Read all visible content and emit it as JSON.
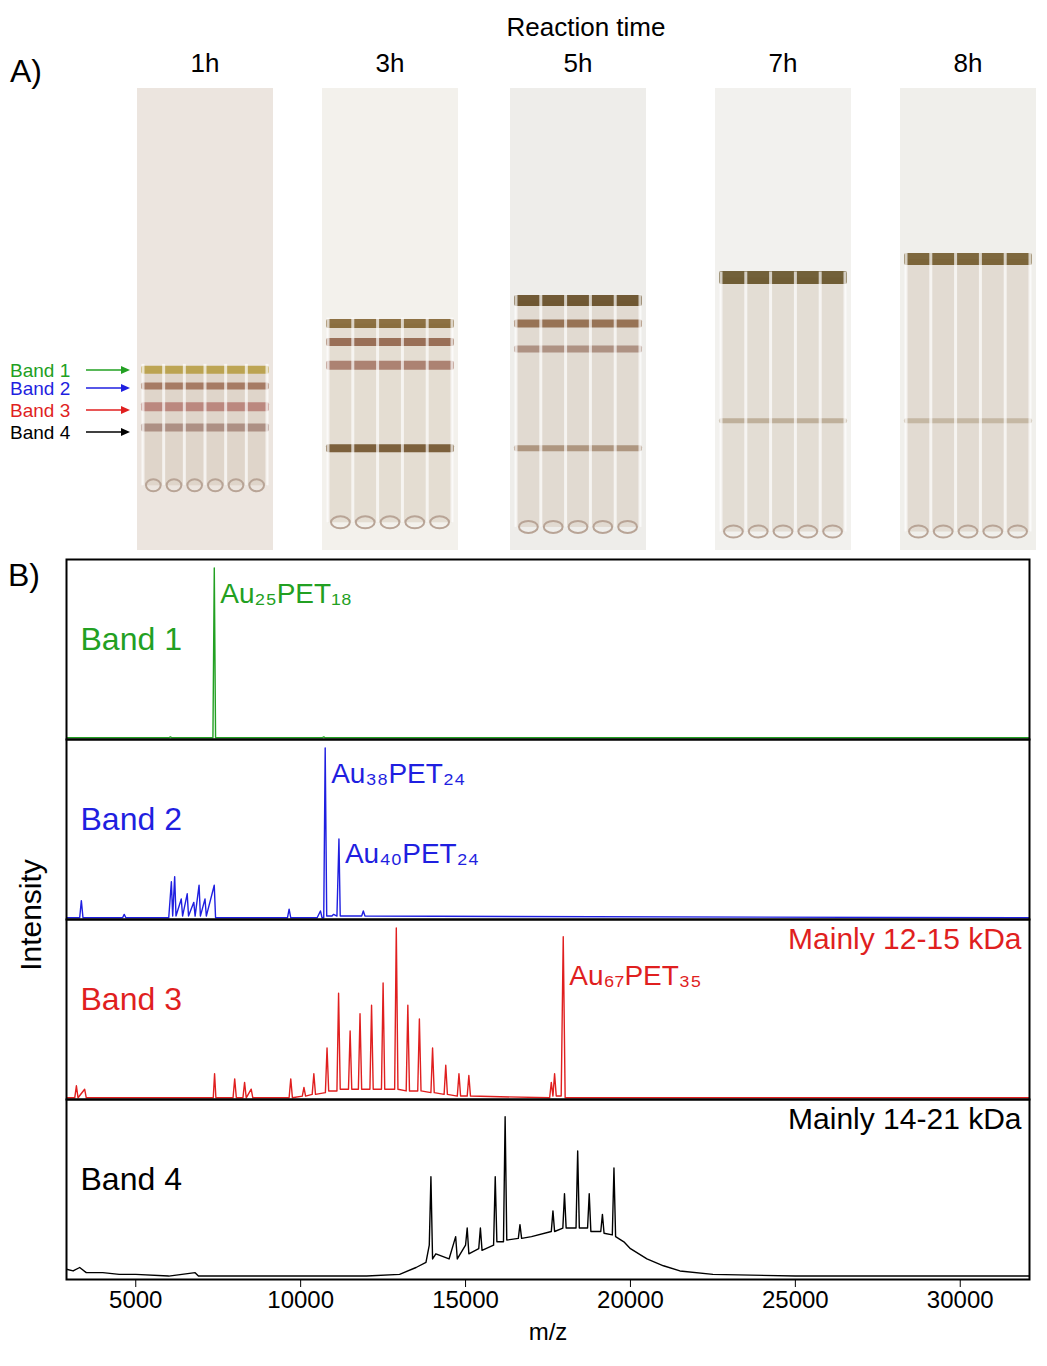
{
  "panel_a": {
    "panel": "A)",
    "title": "Reaction time",
    "times": [
      "1h",
      "3h",
      "5h",
      "7h",
      "8h"
    ],
    "bands": [
      {
        "label": "Band 1",
        "color": "#22a022"
      },
      {
        "label": "Band 2",
        "color": "#1f1fe0"
      },
      {
        "label": "Band 3",
        "color": "#e01f1f"
      },
      {
        "label": "Band 4",
        "color": "#000000"
      }
    ]
  },
  "chart_data": {
    "type": "line",
    "panel": "B)",
    "xlabel": "m/z",
    "ylabel": "Intensity",
    "xlim": [
      2900,
      32100
    ],
    "xticks": [
      5000,
      10000,
      15000,
      20000,
      25000,
      30000
    ],
    "ylim": [
      0,
      1.05
    ],
    "tick_labels": "x",
    "series": [
      {
        "name": "Band 1",
        "color": "#22a022",
        "x": [
          2900,
          6000,
          6050,
          6100,
          7340,
          7381,
          7420,
          10650,
          10700,
          10750,
          32100
        ],
        "values": [
          0.01,
          0.01,
          0.015,
          0.01,
          0.01,
          1.0,
          0.01,
          0.01,
          0.015,
          0.01,
          0.01
        ],
        "annotations": [
          {
            "text": "Au₂₅PET₁₈",
            "x": 7381,
            "y": 0.85
          }
        ]
      },
      {
        "name": "Band 2",
        "color": "#1f1fe0",
        "x": [
          2900,
          3300,
          3350,
          3400,
          4600,
          4650,
          4700,
          6000,
          6080,
          6120,
          6180,
          6220,
          6380,
          6420,
          6560,
          6600,
          6760,
          6800,
          6920,
          6960,
          7100,
          7140,
          7380,
          7420,
          9600,
          9650,
          9700,
          10500,
          10600,
          10650,
          10700,
          10744,
          10790,
          10950,
          11000,
          11100,
          11161,
          11200,
          11850,
          11900,
          11950,
          32100
        ],
        "values": [
          0.01,
          0.01,
          0.11,
          0.01,
          0.01,
          0.03,
          0.01,
          0.01,
          0.22,
          0.02,
          0.25,
          0.02,
          0.12,
          0.02,
          0.15,
          0.02,
          0.1,
          0.02,
          0.2,
          0.02,
          0.12,
          0.02,
          0.2,
          0.01,
          0.01,
          0.06,
          0.01,
          0.01,
          0.05,
          0.01,
          0.01,
          1.0,
          0.02,
          0.02,
          0.03,
          0.02,
          0.47,
          0.02,
          0.02,
          0.05,
          0.02,
          0.01
        ],
        "annotations": [
          {
            "text": "Au₃₈PET₂₄",
            "x": 10744,
            "y": 0.85
          },
          {
            "text": "Au₄₀PET₂₄",
            "x": 11161,
            "y": 0.38
          }
        ]
      },
      {
        "name": "Band 3",
        "color": "#e01f1f",
        "note": "Mainly 12-15 kDa",
        "x": [
          2900,
          3150,
          3200,
          3250,
          3450,
          3500,
          7350,
          7390,
          7430,
          7950,
          8000,
          8050,
          8250,
          8300,
          8350,
          8500,
          8550,
          9650,
          9700,
          9750,
          10050,
          10100,
          10150,
          10350,
          10400,
          10450,
          10750,
          10800,
          10850,
          11100,
          11150,
          11200,
          11450,
          11500,
          11550,
          11750,
          11800,
          11850,
          12100,
          12150,
          12200,
          12450,
          12500,
          12550,
          12850,
          12900,
          12950,
          13200,
          13250,
          13300,
          13550,
          13600,
          13650,
          13950,
          14000,
          14050,
          14350,
          14400,
          14450,
          14750,
          14800,
          14850,
          15050,
          15100,
          15150,
          17550,
          17600,
          17650,
          17700,
          17750,
          17900,
          17962,
          18020,
          32100
        ],
        "values": [
          0.01,
          0.01,
          0.08,
          0.01,
          0.06,
          0.01,
          0.01,
          0.15,
          0.01,
          0.01,
          0.12,
          0.01,
          0.01,
          0.1,
          0.01,
          0.06,
          0.01,
          0.01,
          0.12,
          0.01,
          0.02,
          0.07,
          0.02,
          0.03,
          0.15,
          0.03,
          0.04,
          0.3,
          0.05,
          0.05,
          0.62,
          0.06,
          0.06,
          0.4,
          0.06,
          0.06,
          0.5,
          0.06,
          0.06,
          0.55,
          0.06,
          0.06,
          0.68,
          0.06,
          0.06,
          1.0,
          0.06,
          0.05,
          0.55,
          0.05,
          0.05,
          0.47,
          0.05,
          0.04,
          0.3,
          0.04,
          0.03,
          0.2,
          0.03,
          0.02,
          0.15,
          0.02,
          0.02,
          0.14,
          0.02,
          0.01,
          0.1,
          0.02,
          0.15,
          0.02,
          0.02,
          0.95,
          0.01,
          0.01
        ],
        "annotations": [
          {
            "text": "Au₆₇PET₃₅",
            "x": 17962,
            "y": 0.72
          }
        ]
      },
      {
        "name": "Band 4",
        "color": "#000000",
        "note": "Mainly 14-21 kDa",
        "x": [
          2900,
          3100,
          3300,
          3500,
          4000,
          4500,
          5000,
          6000,
          6800,
          6900,
          8000,
          10000,
          12000,
          13000,
          13500,
          13800,
          13900,
          13950,
          14000,
          14100,
          14500,
          14700,
          14750,
          15000,
          15050,
          15100,
          15400,
          15450,
          15500,
          15850,
          15900,
          15950,
          16150,
          16200,
          16250,
          16600,
          16650,
          16700,
          17000,
          17600,
          17650,
          17700,
          17950,
          18000,
          18050,
          18350,
          18400,
          18450,
          18700,
          18750,
          18800,
          19100,
          19150,
          19200,
          19450,
          19500,
          19550,
          19800,
          20000,
          20500,
          21000,
          21500,
          22500,
          25000,
          28000,
          32100
        ],
        "values": [
          0.06,
          0.05,
          0.07,
          0.04,
          0.04,
          0.03,
          0.03,
          0.02,
          0.04,
          0.02,
          0.02,
          0.02,
          0.02,
          0.03,
          0.07,
          0.1,
          0.2,
          0.6,
          0.12,
          0.15,
          0.12,
          0.25,
          0.12,
          0.2,
          0.3,
          0.15,
          0.18,
          0.3,
          0.17,
          0.2,
          0.6,
          0.22,
          0.22,
          0.95,
          0.23,
          0.24,
          0.32,
          0.24,
          0.25,
          0.28,
          0.4,
          0.28,
          0.3,
          0.5,
          0.3,
          0.3,
          0.75,
          0.3,
          0.3,
          0.5,
          0.28,
          0.28,
          0.38,
          0.27,
          0.26,
          0.65,
          0.25,
          0.22,
          0.18,
          0.12,
          0.08,
          0.05,
          0.03,
          0.02,
          0.02,
          0.02
        ]
      }
    ]
  }
}
